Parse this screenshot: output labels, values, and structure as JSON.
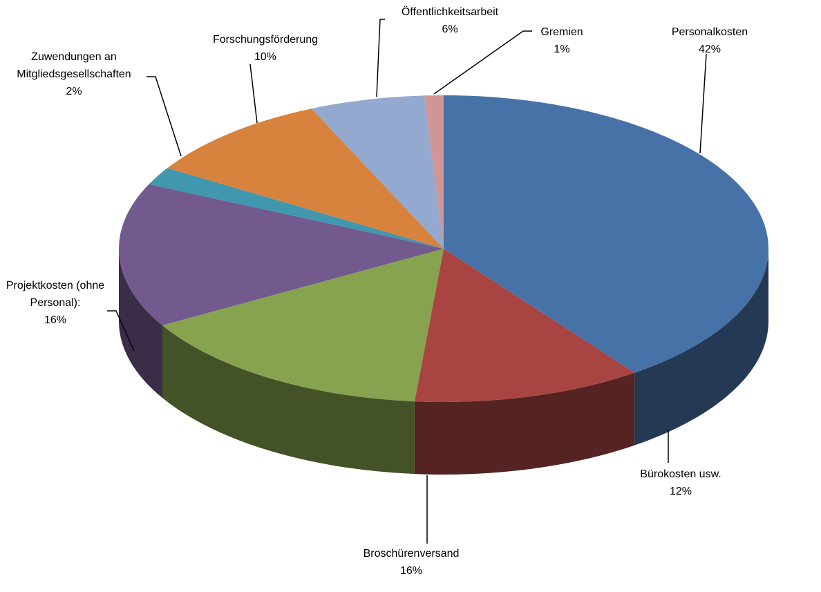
{
  "chart_data": {
    "type": "pie",
    "three_d": true,
    "categories": [
      "Personalkosten",
      "Bürokosten usw.",
      "Broschürenversand",
      "Projektkosten (ohne Personal):",
      "Zuwendungen an Mitgliedsgesellschaften",
      "Forschungsförderung",
      "Öffentlichkeitsarbeit",
      "Gremien"
    ],
    "values": [
      42,
      12,
      16,
      16,
      2,
      10,
      6,
      1
    ],
    "value_labels": [
      "42%",
      "12%",
      "16%",
      "16%",
      "2%",
      "10%",
      "6%",
      "1%"
    ],
    "colors": [
      "#4672a8",
      "#a84543",
      "#87a34f",
      "#725a8e",
      "#4097ae",
      "#d8833d",
      "#93a9cf",
      "#d09594"
    ]
  }
}
